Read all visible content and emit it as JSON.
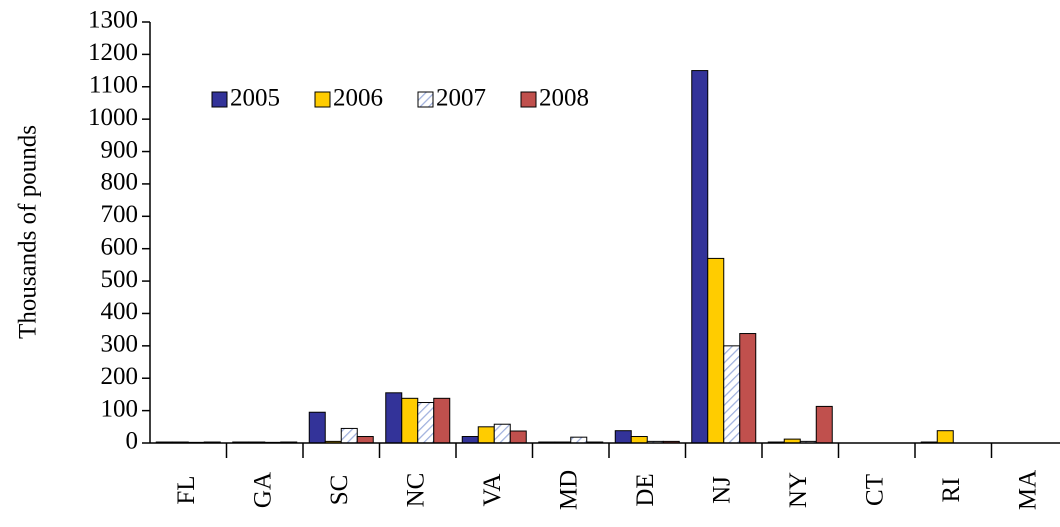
{
  "chart_data": {
    "type": "bar",
    "y_label": "Thousands of pounds",
    "categories": [
      "FL",
      "GA",
      "SC",
      "NC",
      "VA",
      "MD",
      "DE",
      "NJ",
      "NY",
      "CT",
      "RI",
      "MA"
    ],
    "series": [
      {
        "name": "2005",
        "color": "#333399",
        "values": [
          3,
          3,
          95,
          155,
          20,
          3,
          38,
          1150,
          3,
          0,
          3,
          0
        ]
      },
      {
        "name": "2006",
        "color": "#ffcc00",
        "values": [
          3,
          3,
          5,
          138,
          50,
          3,
          20,
          570,
          12,
          0,
          38,
          0
        ]
      },
      {
        "name": "2007",
        "color": "#c9d3ee",
        "values": [
          2,
          2,
          45,
          125,
          58,
          18,
          5,
          300,
          5,
          0,
          0,
          0
        ]
      },
      {
        "name": "2008",
        "color": "#c0504d",
        "values": [
          3,
          3,
          20,
          138,
          37,
          3,
          5,
          338,
          113,
          0,
          0,
          0
        ]
      }
    ],
    "ylim": [
      0,
      1300
    ],
    "yticks": [
      0,
      100,
      200,
      300,
      400,
      500,
      600,
      700,
      800,
      900,
      1000,
      1100,
      1200,
      1300
    ],
    "legend": "upper left"
  }
}
